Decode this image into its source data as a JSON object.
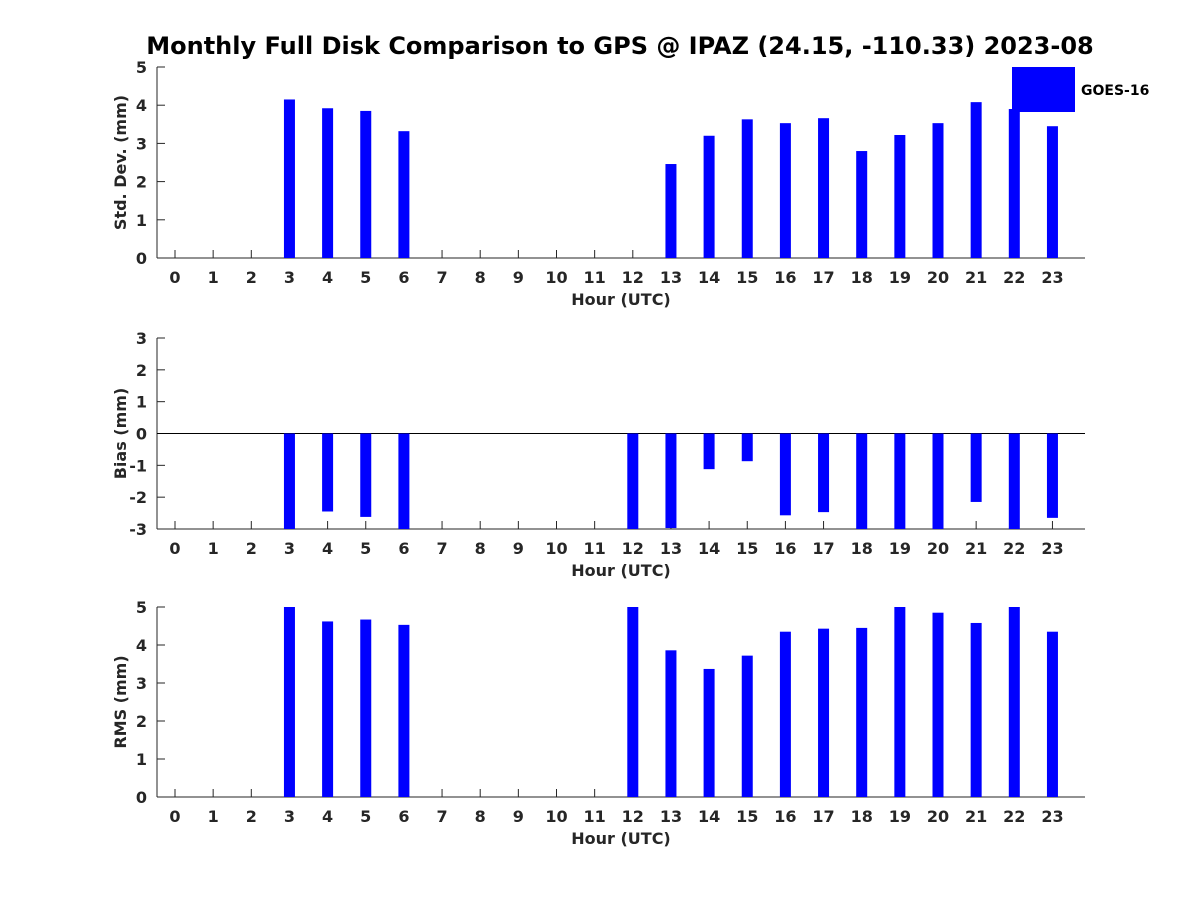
{
  "figure_title": "Monthly Full Disk Comparison to GPS @ IPAZ (24.15, -110.33) 2023-08",
  "colors": {
    "bar": "#0000ff",
    "axis": "#262626",
    "zero_line": "#000000"
  },
  "legend": {
    "label": "GOES-16",
    "placement": "top-right"
  },
  "chart_data": [
    {
      "type": "bar",
      "title": "",
      "xlabel": "Hour (UTC)",
      "ylabel": "Std. Dev. (mm)",
      "ylim": [
        0,
        5
      ],
      "yticks": [
        "0",
        "1",
        "2",
        "3",
        "4",
        "5"
      ],
      "categories": [
        "0",
        "1",
        "2",
        "3",
        "4",
        "5",
        "6",
        "7",
        "8",
        "9",
        "10",
        "11",
        "12",
        "13",
        "14",
        "15",
        "16",
        "17",
        "18",
        "19",
        "20",
        "21",
        "22",
        "23"
      ],
      "series": [
        {
          "name": "GOES-16",
          "values": [
            null,
            null,
            null,
            4.15,
            3.92,
            3.85,
            3.32,
            null,
            null,
            null,
            null,
            null,
            null,
            2.46,
            3.2,
            3.63,
            3.53,
            3.66,
            2.8,
            3.22,
            3.53,
            4.08,
            3.9,
            3.45
          ]
        }
      ]
    },
    {
      "type": "bar",
      "title": "",
      "xlabel": "Hour (UTC)",
      "ylabel": "Bias (mm)",
      "ylim": [
        -3,
        3
      ],
      "yticks": [
        "-3",
        "-2",
        "-1",
        "0",
        "1",
        "2",
        "3"
      ],
      "categories": [
        "0",
        "1",
        "2",
        "3",
        "4",
        "5",
        "6",
        "7",
        "8",
        "9",
        "10",
        "11",
        "12",
        "13",
        "14",
        "15",
        "16",
        "17",
        "18",
        "19",
        "20",
        "21",
        "22",
        "23"
      ],
      "series": [
        {
          "name": "GOES-16",
          "values": [
            null,
            null,
            null,
            -3.0,
            -2.45,
            -2.62,
            -3.0,
            null,
            null,
            null,
            null,
            null,
            -3.0,
            -2.97,
            -1.12,
            -0.87,
            -2.57,
            -2.47,
            -3.0,
            -3.0,
            -3.0,
            -2.15,
            -3.0,
            -2.65
          ]
        }
      ]
    },
    {
      "type": "bar",
      "title": "",
      "xlabel": "Hour (UTC)",
      "ylabel": "RMS (mm)",
      "ylim": [
        0,
        5
      ],
      "yticks": [
        "0",
        "1",
        "2",
        "3",
        "4",
        "5"
      ],
      "categories": [
        "0",
        "1",
        "2",
        "3",
        "4",
        "5",
        "6",
        "7",
        "8",
        "9",
        "10",
        "11",
        "12",
        "13",
        "14",
        "15",
        "16",
        "17",
        "18",
        "19",
        "20",
        "21",
        "22",
        "23"
      ],
      "series": [
        {
          "name": "GOES-16",
          "values": [
            null,
            null,
            null,
            5.0,
            4.62,
            4.67,
            4.53,
            null,
            null,
            null,
            null,
            null,
            5.0,
            3.86,
            3.37,
            3.72,
            4.35,
            4.43,
            4.45,
            5.0,
            4.85,
            4.58,
            5.0,
            4.35
          ]
        }
      ]
    }
  ]
}
